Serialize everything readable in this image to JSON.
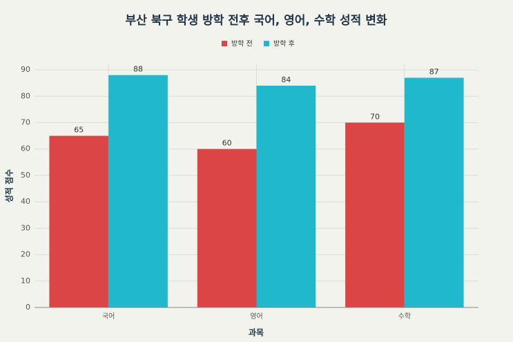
{
  "chart_data": {
    "type": "bar",
    "title": "부산 북구 학생 방학 전후 국어, 영어, 수학 성적 변화",
    "x_label": "과목",
    "y_label": "성적 점수",
    "categories": [
      "국어",
      "영어",
      "수학"
    ],
    "series": [
      {
        "name": "방학 전",
        "color": "#db4545",
        "values": [
          65,
          60,
          70
        ]
      },
      {
        "name": "방학 후",
        "color": "#1fb8cd",
        "values": [
          88,
          84,
          87
        ]
      }
    ],
    "ylim": [
      0,
      92
    ],
    "yticks": [
      0,
      10,
      20,
      30,
      40,
      50,
      60,
      70,
      80,
      90
    ],
    "grid": true,
    "legend": "top"
  }
}
